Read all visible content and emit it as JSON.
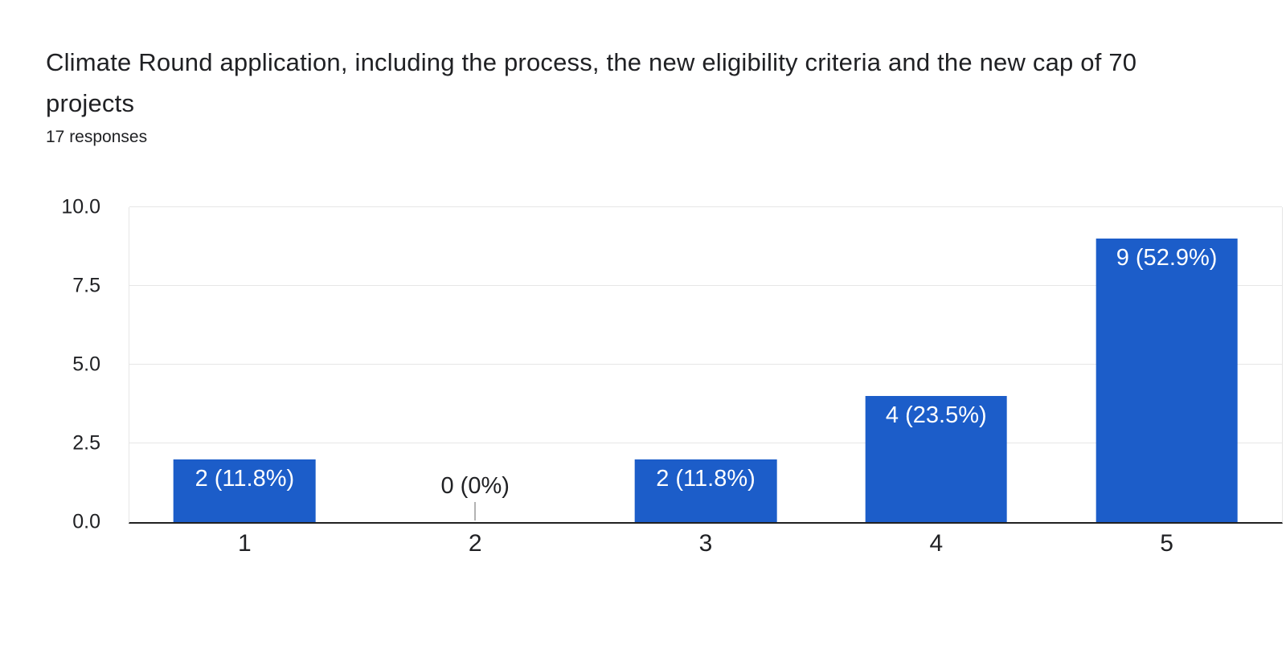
{
  "header": {
    "title": "Climate Round application, including the process, the new eligibility criteria and the new cap of 70 projects",
    "responses": "17 responses"
  },
  "chart_data": {
    "type": "bar",
    "title": "Climate Round application, including the process, the new eligibility criteria and the new cap of 70 projects",
    "subtitle": "17 responses",
    "total_responses": 17,
    "categories": [
      "1",
      "2",
      "3",
      "4",
      "5"
    ],
    "values": [
      2,
      0,
      2,
      4,
      9
    ],
    "percentages": [
      11.8,
      0,
      11.8,
      23.5,
      52.9
    ],
    "labels": [
      "2 (11.8%)",
      "0 (0%)",
      "2 (11.8%)",
      "4 (23.5%)",
      "9 (52.9%)"
    ],
    "xlabel": "",
    "ylabel": "",
    "ylim": [
      0,
      10
    ],
    "yticks": [
      0,
      2.5,
      5,
      7.5,
      10
    ],
    "ytick_labels": [
      "0.0",
      "2.5",
      "5.0",
      "7.5",
      "10.0"
    ],
    "grid": true,
    "legend": "none",
    "colors": {
      "bar": "#1c5dc9",
      "bar_label_text": "#ffffff",
      "zero_label_text": "#202124",
      "axis_line": "#212121",
      "gridline": "#e6e6e6",
      "leader_line": "#b3b3b3",
      "text": "#202124",
      "background": "#ffffff"
    }
  }
}
